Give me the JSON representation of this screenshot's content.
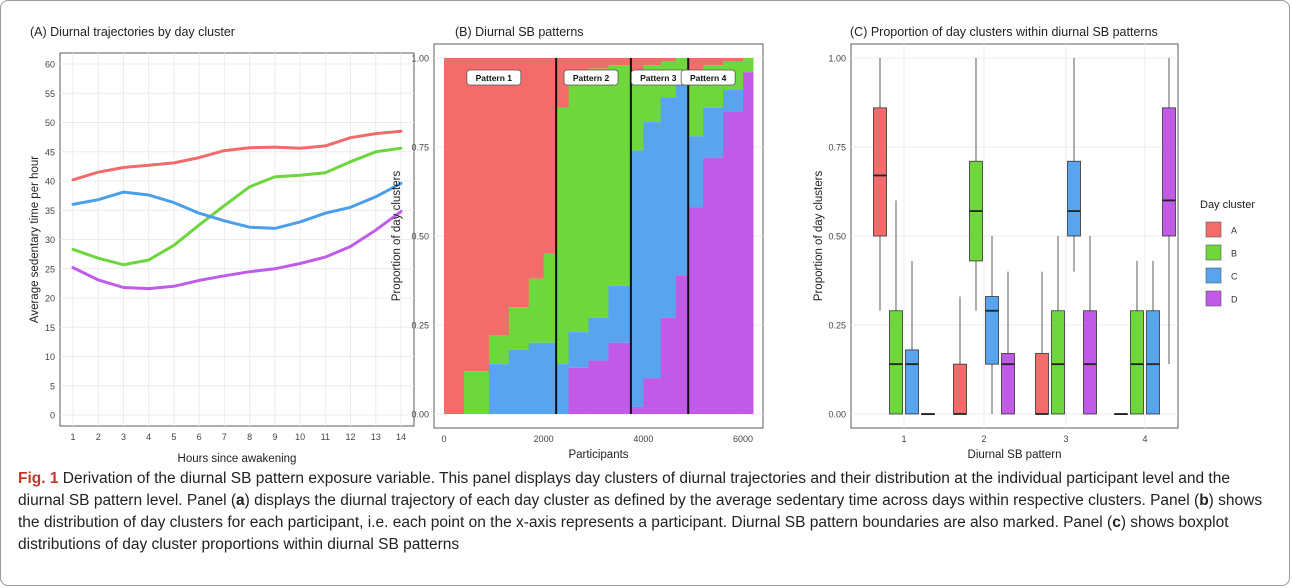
{
  "caption": {
    "label": "Fig. 1",
    "part1": " Derivation of the diurnal SB pattern exposure variable. This panel displays day clusters of diurnal trajectories and their distribution at the individual participant level and the diurnal SB pattern level. Panel (",
    "ref_a": "a",
    "part2": ") displays the diurnal trajectory of each day cluster as defined by the average sedentary time across days within respective clusters. Panel (",
    "ref_b": "b",
    "part3": ") shows the distribution of day clusters for each participant, i.e. each point on the x-axis represents a participant. Diurnal SB pattern boundaries are also marked. Panel (",
    "ref_c": "c",
    "part4": ") shows boxplot distributions of day cluster proportions within diurnal SB patterns"
  },
  "colors": {
    "A": "#F8766D",
    "B": "#7CAE00",
    "C": "#00BFC4",
    "D": "#C77CFF"
  },
  "chart_data": [
    {
      "type": "line",
      "title": "(A) Diurnal trajectories by day cluster",
      "xlabel": "Hours since awakening",
      "ylabel": "Average sedentary time per hour",
      "xlim": [
        1,
        14
      ],
      "ylim": [
        0,
        60
      ],
      "x_ticks": [
        1,
        2,
        3,
        4,
        5,
        6,
        7,
        8,
        9,
        10,
        11,
        12,
        13,
        14
      ],
      "y_ticks": [
        0,
        5,
        10,
        15,
        20,
        25,
        30,
        35,
        40,
        45,
        50,
        55,
        60
      ],
      "grid": true,
      "x": [
        1,
        2,
        3,
        4,
        5,
        6,
        7,
        8,
        9,
        10,
        11,
        12,
        13,
        14
      ],
      "series": [
        {
          "key": "A",
          "color": "#F06B6B",
          "values": [
            40.2,
            41.5,
            42.3,
            42.7,
            43.1,
            44.0,
            45.2,
            45.7,
            45.8,
            45.6,
            46.0,
            47.4,
            48.1,
            48.5
          ]
        },
        {
          "key": "B",
          "color": "#6DD63E",
          "values": [
            28.3,
            26.8,
            25.7,
            26.5,
            29.0,
            32.5,
            35.8,
            39.0,
            40.7,
            41.0,
            41.4,
            43.3,
            45.0,
            45.6
          ]
        },
        {
          "key": "C",
          "color": "#4C9EE8",
          "values": [
            36.0,
            36.8,
            38.1,
            37.6,
            36.3,
            34.5,
            33.2,
            32.1,
            31.9,
            33.0,
            34.5,
            35.5,
            37.3,
            39.6
          ]
        },
        {
          "key": "D",
          "color": "#C05CE8",
          "values": [
            25.2,
            23.1,
            21.8,
            21.6,
            22.0,
            23.0,
            23.8,
            24.5,
            25.0,
            25.9,
            27.0,
            28.8,
            31.6,
            34.8
          ]
        }
      ]
    },
    {
      "type": "area",
      "title": "(B) Diurnal SB patterns",
      "xlabel": "Participants",
      "ylabel": "Proportion of day clusters",
      "xlim": [
        0,
        6200
      ],
      "ylim": [
        0,
        1
      ],
      "x_ticks": [
        0,
        2000,
        4000,
        6000
      ],
      "y_ticks": [
        "0.00",
        "0.25",
        "0.50",
        "0.75",
        "1.00"
      ],
      "grid": true,
      "boundaries": [
        2250,
        3750,
        4900
      ],
      "pattern_labels": [
        "Pattern 1",
        "Pattern 2",
        "Pattern 3",
        "Pattern 4"
      ],
      "pattern_label_x": [
        1000,
        2950,
        4300,
        5300
      ],
      "segments": [
        {
          "start": 0,
          "end": 400,
          "A": 1.0,
          "B": 0.0,
          "C": 0.0
        },
        {
          "start": 400,
          "end": 900,
          "A": 0.88,
          "B": 0.12,
          "C": 0.0
        },
        {
          "start": 900,
          "end": 1300,
          "A": 0.78,
          "B": 0.08,
          "C": 0.14
        },
        {
          "start": 1300,
          "end": 1700,
          "A": 0.7,
          "B": 0.12,
          "C": 0.18
        },
        {
          "start": 1700,
          "end": 2000,
          "A": 0.62,
          "B": 0.18,
          "C": 0.2
        },
        {
          "start": 2000,
          "end": 2250,
          "A": 0.55,
          "B": 0.25,
          "C": 0.2
        },
        {
          "start": 2250,
          "end": 2500,
          "A": 0.14,
          "B": 0.72,
          "C": 0.14
        },
        {
          "start": 2500,
          "end": 2900,
          "A": 0.05,
          "B": 0.72,
          "C": 0.1
        },
        {
          "start": 2900,
          "end": 3300,
          "A": 0.03,
          "B": 0.7,
          "C": 0.12
        },
        {
          "start": 3300,
          "end": 3750,
          "A": 0.02,
          "B": 0.62,
          "C": 0.16
        },
        {
          "start": 3750,
          "end": 4000,
          "A": 0.04,
          "B": 0.22,
          "C": 0.72
        },
        {
          "start": 4000,
          "end": 4350,
          "A": 0.02,
          "B": 0.16,
          "C": 0.72
        },
        {
          "start": 4350,
          "end": 4650,
          "A": 0.01,
          "B": 0.1,
          "C": 0.62
        },
        {
          "start": 4650,
          "end": 4900,
          "A": 0.0,
          "B": 0.06,
          "C": 0.55
        },
        {
          "start": 4900,
          "end": 5200,
          "A": 0.04,
          "B": 0.18,
          "C": 0.2
        },
        {
          "start": 5200,
          "end": 5600,
          "A": 0.02,
          "B": 0.12,
          "C": 0.14
        },
        {
          "start": 5600,
          "end": 6000,
          "A": 0.01,
          "B": 0.08,
          "C": 0.06
        },
        {
          "start": 6000,
          "end": 6200,
          "A": 0.0,
          "B": 0.04,
          "C": 0.0
        }
      ]
    },
    {
      "type": "boxplot",
      "title": "(C) Proportion of day clusters within diurnal SB patterns",
      "xlabel": "Diurnal SB pattern",
      "ylabel": "Proportion of day clusters",
      "categories": [
        "1",
        "2",
        "3",
        "4"
      ],
      "ylim": [
        0,
        1
      ],
      "y_ticks": [
        "0.00",
        "0.25",
        "0.50",
        "0.75",
        "1.00"
      ],
      "grid": true,
      "legend": {
        "title": "Day cluster",
        "entries": [
          "A",
          "B",
          "C",
          "D"
        ],
        "position": "right"
      },
      "boxes": [
        {
          "pattern": 1,
          "cluster": "A",
          "min": 0.29,
          "q1": 0.5,
          "median": 0.67,
          "q3": 0.86,
          "max": 1.0
        },
        {
          "pattern": 1,
          "cluster": "B",
          "min": 0.0,
          "q1": 0.0,
          "median": 0.14,
          "q3": 0.29,
          "max": 0.6
        },
        {
          "pattern": 1,
          "cluster": "C",
          "min": 0.0,
          "q1": 0.0,
          "median": 0.14,
          "q3": 0.18,
          "max": 0.43
        },
        {
          "pattern": 1,
          "cluster": "D",
          "min": 0.0,
          "q1": 0.0,
          "median": 0.0,
          "q3": 0.0,
          "max": 0.0
        },
        {
          "pattern": 2,
          "cluster": "A",
          "min": 0.0,
          "q1": 0.0,
          "median": 0.0,
          "q3": 0.14,
          "max": 0.33
        },
        {
          "pattern": 2,
          "cluster": "B",
          "min": 0.29,
          "q1": 0.43,
          "median": 0.57,
          "q3": 0.71,
          "max": 1.0
        },
        {
          "pattern": 2,
          "cluster": "C",
          "min": 0.0,
          "q1": 0.14,
          "median": 0.29,
          "q3": 0.33,
          "max": 0.5
        },
        {
          "pattern": 2,
          "cluster": "D",
          "min": 0.0,
          "q1": 0.0,
          "median": 0.14,
          "q3": 0.17,
          "max": 0.4
        },
        {
          "pattern": 3,
          "cluster": "A",
          "min": 0.0,
          "q1": 0.0,
          "median": 0.0,
          "q3": 0.17,
          "max": 0.4
        },
        {
          "pattern": 3,
          "cluster": "B",
          "min": 0.0,
          "q1": 0.0,
          "median": 0.14,
          "q3": 0.29,
          "max": 0.5
        },
        {
          "pattern": 3,
          "cluster": "C",
          "min": 0.4,
          "q1": 0.5,
          "median": 0.57,
          "q3": 0.71,
          "max": 1.0
        },
        {
          "pattern": 3,
          "cluster": "D",
          "min": 0.0,
          "q1": 0.0,
          "median": 0.14,
          "q3": 0.29,
          "max": 0.5
        },
        {
          "pattern": 4,
          "cluster": "A",
          "min": 0.0,
          "q1": 0.0,
          "median": 0.0,
          "q3": 0.0,
          "max": 0.0
        },
        {
          "pattern": 4,
          "cluster": "B",
          "min": 0.0,
          "q1": 0.0,
          "median": 0.14,
          "q3": 0.29,
          "max": 0.43
        },
        {
          "pattern": 4,
          "cluster": "C",
          "min": 0.0,
          "q1": 0.0,
          "median": 0.14,
          "q3": 0.29,
          "max": 0.43
        },
        {
          "pattern": 4,
          "cluster": "D",
          "min": 0.14,
          "q1": 0.5,
          "median": 0.6,
          "q3": 0.86,
          "max": 1.0
        }
      ]
    }
  ]
}
